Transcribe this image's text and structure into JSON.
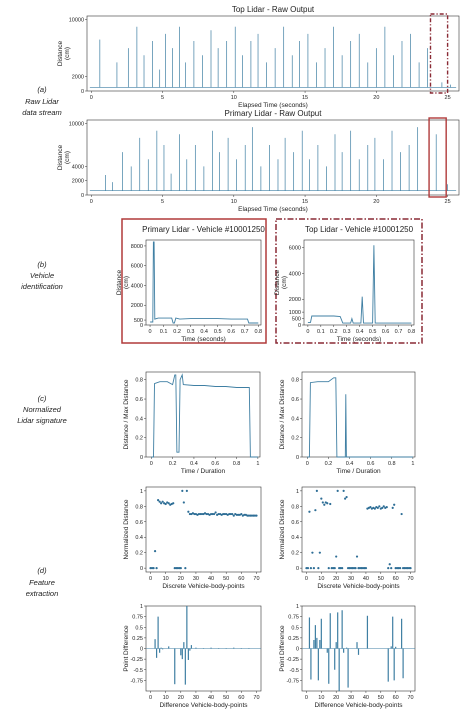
{
  "side_labels": {
    "a": [
      "(a)",
      "Raw Lidar",
      "data stream"
    ],
    "b": [
      "(b)",
      "Vehicle",
      "identification"
    ],
    "c": [
      "(c)",
      "Normalized",
      "Lidar signature"
    ],
    "d": [
      "(d)",
      "Feature",
      "extraction"
    ]
  },
  "colors": {
    "series": "#3f7fa3",
    "marker": "#2e6e96",
    "highlight_solid": "#b03a3a",
    "highlight_dash": "#8a2a35"
  },
  "chart_data": [
    {
      "id": "top",
      "type": "line",
      "title": "Top Lidar - Raw Output",
      "xlabel": "Elapsed Time  (seconds)",
      "ylabel": "Distance\n(cm)",
      "xlim": [
        -0.3,
        25.8
      ],
      "ylim": [
        0,
        10500
      ],
      "xticks": [
        0,
        5,
        10,
        15,
        20,
        25
      ],
      "yticks": [
        0,
        2000,
        10000
      ],
      "baseline": 500,
      "spikes": [
        [
          0.6,
          7200
        ],
        [
          1.8,
          4000
        ],
        [
          2.6,
          6000
        ],
        [
          3.2,
          9000
        ],
        [
          3.7,
          5000
        ],
        [
          4.3,
          7000
        ],
        [
          4.8,
          3000
        ],
        [
          5.2,
          8000
        ],
        [
          5.7,
          6000
        ],
        [
          6.2,
          9000
        ],
        [
          6.6,
          4000
        ],
        [
          7.2,
          7000
        ],
        [
          7.8,
          5000
        ],
        [
          8.4,
          8500
        ],
        [
          8.9,
          6000
        ],
        [
          9.5,
          7000
        ],
        [
          10.1,
          9000
        ],
        [
          10.6,
          5000
        ],
        [
          11.2,
          7000
        ],
        [
          11.7,
          8000
        ],
        [
          12.3,
          4000
        ],
        [
          12.9,
          6000
        ],
        [
          13.5,
          9000
        ],
        [
          14.1,
          5000
        ],
        [
          14.6,
          7000
        ],
        [
          15.2,
          8000
        ],
        [
          15.8,
          4000
        ],
        [
          16.4,
          6000
        ],
        [
          17.0,
          9000
        ],
        [
          17.6,
          5000
        ],
        [
          18.2,
          7000
        ],
        [
          18.8,
          8000
        ],
        [
          19.4,
          4000
        ],
        [
          20.0,
          6000
        ],
        [
          20.6,
          9000
        ],
        [
          21.2,
          5000
        ],
        [
          21.8,
          7000
        ],
        [
          22.4,
          8000
        ],
        [
          23.0,
          4000
        ],
        [
          23.6,
          6000
        ],
        [
          24.6,
          1200
        ],
        [
          25.2,
          900
        ]
      ],
      "highlight": {
        "style": "dashed",
        "x": [
          23.8,
          25.0
        ]
      }
    },
    {
      "id": "primary",
      "type": "line",
      "title": "Primary Lidar - Raw Output",
      "xlabel": "Elapsed Time  (seconds)",
      "ylabel": "Distance\n(cm)",
      "xlim": [
        -0.3,
        25.8
      ],
      "ylim": [
        0,
        10500
      ],
      "xticks": [
        0,
        5,
        10,
        15,
        20,
        25
      ],
      "yticks": [
        0,
        2000,
        4000,
        10000
      ],
      "baseline": 600,
      "spikes": [
        [
          1.0,
          2800
        ],
        [
          1.5,
          1800
        ],
        [
          2.2,
          6000
        ],
        [
          2.8,
          4000
        ],
        [
          3.4,
          8000
        ],
        [
          4.0,
          5000
        ],
        [
          4.6,
          9000
        ],
        [
          5.1,
          7000
        ],
        [
          5.6,
          3000
        ],
        [
          6.2,
          8500
        ],
        [
          6.7,
          5000
        ],
        [
          7.3,
          7000
        ],
        [
          7.9,
          4000
        ],
        [
          8.5,
          9000
        ],
        [
          9.0,
          6000
        ],
        [
          9.6,
          8000
        ],
        [
          10.2,
          5000
        ],
        [
          10.8,
          7000
        ],
        [
          11.3,
          9500
        ],
        [
          11.9,
          4000
        ],
        [
          12.5,
          7000
        ],
        [
          13.1,
          5000
        ],
        [
          13.6,
          8000
        ],
        [
          14.2,
          6000
        ],
        [
          14.8,
          9000
        ],
        [
          15.3,
          5000
        ],
        [
          15.9,
          7000
        ],
        [
          16.5,
          4000
        ],
        [
          17.1,
          8500
        ],
        [
          17.6,
          6000
        ],
        [
          18.2,
          9000
        ],
        [
          18.8,
          5000
        ],
        [
          19.4,
          7000
        ],
        [
          19.9,
          8000
        ],
        [
          20.5,
          5000
        ],
        [
          21.1,
          9000
        ],
        [
          21.7,
          6000
        ],
        [
          22.3,
          7000
        ],
        [
          22.9,
          9500
        ],
        [
          24.2,
          8500
        ],
        [
          25.0,
          1500
        ]
      ],
      "highlight": {
        "style": "solid",
        "x": [
          23.7,
          24.9
        ]
      }
    },
    {
      "id": "veh-primary",
      "type": "line",
      "title": "Primary Lidar - Vehicle #10001250",
      "xlabel": "Time (seconds)",
      "ylabel": "Distance\n(cm)",
      "xlim": [
        -0.03,
        0.82
      ],
      "ylim": [
        0,
        8600
      ],
      "xticks": [
        0.0,
        0.1,
        0.2,
        0.3,
        0.4,
        0.5,
        0.6,
        0.7,
        0.8
      ],
      "yticks": [
        0,
        500,
        2000,
        4000,
        6000,
        8000
      ],
      "points": [
        [
          0.0,
          300
        ],
        [
          0.02,
          300
        ],
        [
          0.025,
          8400
        ],
        [
          0.03,
          8400
        ],
        [
          0.035,
          600
        ],
        [
          0.06,
          700
        ],
        [
          0.12,
          700
        ],
        [
          0.16,
          700
        ],
        [
          0.17,
          200
        ],
        [
          0.18,
          200
        ],
        [
          0.19,
          700
        ],
        [
          0.22,
          600
        ],
        [
          0.3,
          650
        ],
        [
          0.4,
          650
        ],
        [
          0.5,
          650
        ],
        [
          0.6,
          600
        ],
        [
          0.7,
          600
        ],
        [
          0.72,
          600
        ],
        [
          0.73,
          200
        ],
        [
          0.8,
          200
        ]
      ]
    },
    {
      "id": "veh-top",
      "type": "line",
      "title": "Top Lidar - Vehicle #10001250",
      "xlabel": "Time (seconds)",
      "ylabel": "Distance\n(cm)",
      "xlim": [
        -0.03,
        0.82
      ],
      "ylim": [
        0,
        6600
      ],
      "xticks": [
        0.0,
        0.1,
        0.2,
        0.3,
        0.4,
        0.5,
        0.6,
        0.7,
        0.8
      ],
      "yticks": [
        0,
        500,
        1000,
        2000,
        4000,
        6000
      ],
      "points": [
        [
          0.0,
          200
        ],
        [
          0.02,
          200
        ],
        [
          0.03,
          700
        ],
        [
          0.1,
          700
        ],
        [
          0.2,
          700
        ],
        [
          0.25,
          650
        ],
        [
          0.27,
          150
        ],
        [
          0.3,
          150
        ],
        [
          0.33,
          150
        ],
        [
          0.34,
          500
        ],
        [
          0.35,
          150
        ],
        [
          0.41,
          150
        ],
        [
          0.42,
          2200
        ],
        [
          0.43,
          150
        ],
        [
          0.5,
          150
        ],
        [
          0.51,
          6200
        ],
        [
          0.52,
          150
        ],
        [
          0.6,
          150
        ],
        [
          0.7,
          150
        ],
        [
          0.8,
          150
        ]
      ]
    },
    {
      "id": "norm-left",
      "type": "line",
      "title": "",
      "xlabel": "Time / Duration",
      "ylabel": "Distance / Max Distance",
      "xlim": [
        -0.05,
        1.02
      ],
      "ylim": [
        0,
        0.88
      ],
      "xticks": [
        0.0,
        0.2,
        0.4,
        0.6,
        0.8,
        1.0
      ],
      "yticks": [
        0.0,
        0.2,
        0.4,
        0.6,
        0.8
      ],
      "points": [
        [
          0.0,
          0.0
        ],
        [
          0.02,
          0.0
        ],
        [
          0.03,
          0.76
        ],
        [
          0.08,
          0.78
        ],
        [
          0.15,
          0.78
        ],
        [
          0.2,
          0.75
        ],
        [
          0.22,
          0.85
        ],
        [
          0.23,
          0.85
        ],
        [
          0.24,
          0.05
        ],
        [
          0.26,
          0.05
        ],
        [
          0.27,
          0.8
        ],
        [
          0.29,
          0.85
        ],
        [
          0.3,
          0.75
        ],
        [
          0.4,
          0.74
        ],
        [
          0.5,
          0.74
        ],
        [
          0.6,
          0.73
        ],
        [
          0.7,
          0.73
        ],
        [
          0.8,
          0.72
        ],
        [
          0.9,
          0.72
        ],
        [
          0.92,
          0.72
        ],
        [
          0.93,
          0.0
        ],
        [
          1.0,
          0.0
        ]
      ]
    },
    {
      "id": "norm-right",
      "type": "line",
      "title": "",
      "xlabel": "Time / Duration",
      "ylabel": "Distance / Max Distance",
      "xlim": [
        -0.05,
        1.02
      ],
      "ylim": [
        0,
        0.88
      ],
      "xticks": [
        0.0,
        0.2,
        0.4,
        0.6,
        0.8,
        1.0
      ],
      "yticks": [
        0.0,
        0.2,
        0.4,
        0.6,
        0.8
      ],
      "points": [
        [
          0.0,
          0.0
        ],
        [
          0.02,
          0.0
        ],
        [
          0.03,
          0.77
        ],
        [
          0.1,
          0.78
        ],
        [
          0.2,
          0.78
        ],
        [
          0.25,
          0.82
        ],
        [
          0.27,
          0.82
        ],
        [
          0.28,
          0.0
        ],
        [
          0.36,
          0.0
        ],
        [
          0.365,
          0.65
        ],
        [
          0.37,
          0.0
        ],
        [
          0.5,
          0.0
        ],
        [
          0.7,
          0.0
        ],
        [
          0.9,
          0.0
        ],
        [
          1.0,
          0.0
        ]
      ]
    },
    {
      "id": "feat-left",
      "type": "scatter",
      "title": "",
      "xlabel": "Discrete Vehicle-body-points",
      "ylabel": "Normalized Distance",
      "xlim": [
        -3,
        73
      ],
      "ylim": [
        -0.05,
        1.05
      ],
      "xticks": [
        0,
        10,
        20,
        30,
        40,
        50,
        60,
        70
      ],
      "yticks": [
        0.0,
        0.2,
        0.4,
        0.6,
        0.8,
        1.0
      ],
      "x": [
        0,
        1,
        2,
        3,
        4,
        5,
        6,
        7,
        8,
        9,
        10,
        11,
        12,
        13,
        14,
        15,
        16,
        17,
        18,
        19,
        20,
        21,
        22,
        23,
        24,
        25,
        26,
        27,
        28,
        29,
        30,
        31,
        32,
        33,
        34,
        35,
        36,
        37,
        38,
        39,
        40,
        41,
        42,
        43,
        44,
        45,
        46,
        47,
        48,
        49,
        50,
        51,
        52,
        53,
        54,
        55,
        56,
        57,
        58,
        59,
        60,
        61,
        62,
        63,
        64,
        65,
        66,
        67,
        68,
        69,
        70
      ],
      "y": [
        0.0,
        0.0,
        0.0,
        0.22,
        0.0,
        0.88,
        0.86,
        0.84,
        0.86,
        0.84,
        0.83,
        0.85,
        0.84,
        0.82,
        0.83,
        0.84,
        0.0,
        0.0,
        0.0,
        0.0,
        0.0,
        1.0,
        0.85,
        0.0,
        1.0,
        0.73,
        0.7,
        0.7,
        0.71,
        0.7,
        0.7,
        0.69,
        0.7,
        0.7,
        0.7,
        0.7,
        0.71,
        0.7,
        0.7,
        0.69,
        0.7,
        0.7,
        0.7,
        0.72,
        0.69,
        0.7,
        0.7,
        0.69,
        0.7,
        0.7,
        0.7,
        0.69,
        0.7,
        0.7,
        0.7,
        0.68,
        0.7,
        0.69,
        0.69,
        0.69,
        0.7,
        0.68,
        0.69,
        0.69,
        0.68,
        0.68,
        0.68,
        0.68,
        0.68,
        0.68,
        0.68
      ]
    },
    {
      "id": "feat-right",
      "type": "scatter",
      "title": "",
      "xlabel": "Discrete Vehicle-body-points",
      "ylabel": "Normalized Distance",
      "xlim": [
        -3,
        73
      ],
      "ylim": [
        -0.05,
        1.05
      ],
      "xticks": [
        0,
        10,
        20,
        30,
        40,
        50,
        60,
        70
      ],
      "yticks": [
        0.0,
        0.2,
        0.4,
        0.6,
        0.8,
        1.0
      ],
      "x": [
        0,
        1,
        2,
        3,
        4,
        5,
        6,
        7,
        8,
        9,
        10,
        11,
        12,
        13,
        14,
        15,
        16,
        17,
        18,
        19,
        20,
        21,
        22,
        23,
        24,
        25,
        26,
        27,
        28,
        29,
        30,
        31,
        32,
        33,
        34,
        35,
        36,
        37,
        38,
        39,
        40,
        41,
        42,
        43,
        44,
        45,
        46,
        47,
        48,
        49,
        50,
        51,
        52,
        53,
        54,
        55,
        56,
        57,
        58,
        59,
        60,
        61,
        62,
        63,
        64,
        65,
        66,
        67,
        68,
        69,
        70
      ],
      "y": [
        0.0,
        0.0,
        0.73,
        0.0,
        0.2,
        0.0,
        0.75,
        1.0,
        0.0,
        0.2,
        0.9,
        0.85,
        0.82,
        0.85,
        0.84,
        0.0,
        0.83,
        0.0,
        0.0,
        0.0,
        0.15,
        1.0,
        0.0,
        0.0,
        0.0,
        1.0,
        0.9,
        0.92,
        0.0,
        0.0,
        0.0,
        0.0,
        0.0,
        0.0,
        0.15,
        0.0,
        0.0,
        0.0,
        0.0,
        0.0,
        0.0,
        0.77,
        0.78,
        0.79,
        0.77,
        0.78,
        0.77,
        0.79,
        0.78,
        0.8,
        0.77,
        0.78,
        0.8,
        0.78,
        0.79,
        0.0,
        0.05,
        0.0,
        0.78,
        0.82,
        0.0,
        0.0,
        0.0,
        0.0,
        0.7,
        0.0,
        0.0,
        0.0,
        0.0,
        0.0,
        0.0
      ]
    },
    {
      "id": "diff-left",
      "type": "bar",
      "title": "",
      "xlabel": "Difference Vehicle-body-points",
      "ylabel": "Point Difference",
      "xlim": [
        -3,
        73
      ],
      "ylim": [
        -1.0,
        1.0
      ],
      "xticks": [
        0,
        10,
        20,
        30,
        40,
        50,
        60,
        70
      ],
      "yticks": [
        -0.75,
        -0.5,
        -0.25,
        0.0,
        0.25,
        0.5,
        0.75,
        1.0
      ],
      "x": [
        3,
        4,
        5,
        6,
        7,
        8,
        12,
        16,
        20,
        21,
        22,
        23,
        24,
        25,
        26,
        27,
        30,
        35,
        40,
        45,
        50,
        55,
        60,
        65
      ],
      "values": [
        0.22,
        -0.22,
        0.75,
        -0.1,
        0.02,
        -0.02,
        0.05,
        -0.84,
        -0.16,
        -0.25,
        0.15,
        -0.85,
        1.0,
        -0.27,
        -0.05,
        0.08,
        0.02,
        -0.01,
        0.02,
        0.01,
        -0.01,
        0.02,
        -0.01,
        0.01
      ]
    },
    {
      "id": "diff-right",
      "type": "bar",
      "title": "",
      "xlabel": "Difference Vehicle-body-points",
      "ylabel": "Point Difference",
      "xlim": [
        -3,
        73
      ],
      "ylim": [
        -1.0,
        1.0
      ],
      "xticks": [
        0,
        10,
        20,
        30,
        40,
        50,
        60,
        70
      ],
      "yticks": [
        -0.75,
        -0.5,
        -0.25,
        0.0,
        0.25,
        0.5,
        0.75,
        1.0
      ],
      "x": [
        2,
        3,
        5,
        6,
        7,
        8,
        9,
        10,
        14,
        15,
        16,
        19,
        20,
        21,
        22,
        24,
        25,
        27,
        28,
        34,
        35,
        41,
        55,
        57,
        58,
        59,
        60,
        64,
        65
      ],
      "values": [
        0.73,
        -0.73,
        0.2,
        0.55,
        0.25,
        -0.75,
        0.2,
        0.7,
        -0.1,
        -0.83,
        0.83,
        -0.5,
        0.15,
        0.85,
        -1.0,
        0.9,
        -0.1,
        0.02,
        -0.92,
        0.15,
        -0.15,
        0.77,
        -0.78,
        0.05,
        0.75,
        -0.75,
        0.04,
        0.7,
        -0.7
      ]
    }
  ]
}
